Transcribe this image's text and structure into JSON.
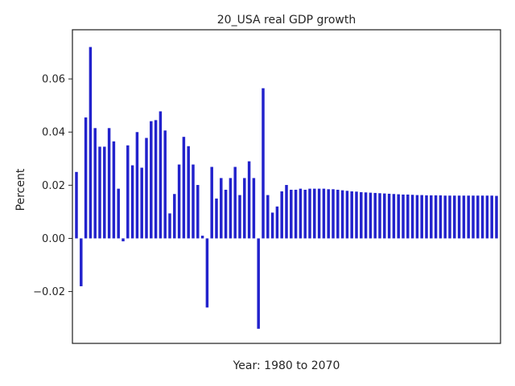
{
  "chart_data": {
    "type": "bar",
    "title": "20_USA real GDP growth",
    "xlabel": "Year: 1980 to 2070",
    "ylabel": "Percent",
    "x_start": 1980,
    "x_end": 2070,
    "ylim": [
      -0.0395,
      0.0785
    ],
    "yticks": [
      -0.02,
      0.0,
      0.02,
      0.04,
      0.06
    ],
    "ytick_labels": [
      "−0.02",
      "0.00",
      "0.02",
      "0.04",
      "0.06"
    ],
    "bar_color": "#2222cc",
    "grid": false,
    "series": [
      {
        "values": [
          0.025,
          -0.018,
          0.0455,
          0.072,
          0.0415,
          0.0345,
          0.0345,
          0.0415,
          0.0365,
          0.0187,
          -0.0011,
          0.035,
          0.0275,
          0.04,
          0.0266,
          0.0378,
          0.0441,
          0.0445,
          0.0478,
          0.0406,
          0.0094,
          0.0167,
          0.0278,
          0.0382,
          0.0347,
          0.0278,
          0.0201,
          0.001,
          -0.026,
          0.0269,
          0.015,
          0.0227,
          0.0183,
          0.0227,
          0.0269,
          0.0163,
          0.0227,
          0.029,
          0.0227,
          -0.034,
          0.0565,
          0.0163,
          0.0097,
          0.012,
          0.0177,
          0.0201,
          0.0183,
          0.0183,
          0.0187,
          0.0183,
          0.0187,
          0.0187,
          0.0187,
          0.0187,
          0.0185,
          0.0185,
          0.0183,
          0.0181,
          0.0179,
          0.0177,
          0.0176,
          0.0174,
          0.0173,
          0.0172,
          0.0171,
          0.017,
          0.0169,
          0.0168,
          0.0167,
          0.0166,
          0.0165,
          0.0165,
          0.0164,
          0.0163,
          0.0163,
          0.0162,
          0.0162,
          0.0162,
          0.0162,
          0.0161,
          0.0161,
          0.0161,
          0.0161,
          0.0161,
          0.0161,
          0.0161,
          0.0161,
          0.0161,
          0.0161,
          0.0161,
          0.016
        ]
      }
    ]
  }
}
